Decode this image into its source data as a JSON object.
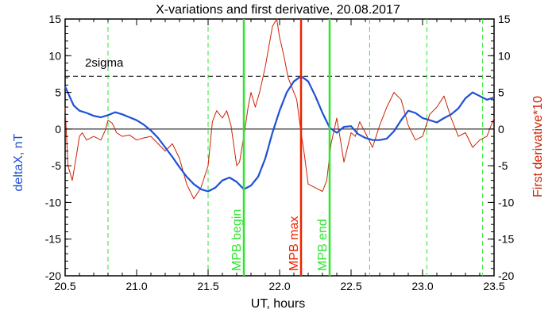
{
  "chart_data": {
    "type": "line",
    "title": "X-variations and first derivative, 20.08.2017",
    "xlabel": "UT, hours",
    "ylabel_left": "deltaX, nT",
    "ylabel_right": "First derivative*10",
    "xlim": [
      20.5,
      23.5
    ],
    "ylim": [
      -20,
      15
    ],
    "x_ticks": [
      20.5,
      21.0,
      21.5,
      22.0,
      22.5,
      23.0,
      23.5
    ],
    "x_tick_labels": [
      "20.5",
      "21.0",
      "21.5",
      "22.0",
      "22.5",
      "23.0",
      "23.5"
    ],
    "y_ticks": [
      -20,
      -15,
      -10,
      -5,
      0,
      5,
      10,
      15
    ],
    "y_tick_labels_left": [
      "-20",
      "-15",
      "-10",
      "-5",
      "0",
      "5",
      "10",
      "15"
    ],
    "y_tick_labels_right": [
      "-20",
      "-15",
      "-10",
      "-5",
      "0",
      "5",
      "10",
      "15"
    ],
    "series": [
      {
        "label": "deltaX, nT",
        "color": "#1f4fd6",
        "x": [
          20.5,
          20.53,
          20.56,
          20.6,
          20.65,
          20.7,
          20.75,
          20.8,
          20.85,
          20.9,
          20.95,
          21.0,
          21.05,
          21.1,
          21.15,
          21.2,
          21.25,
          21.3,
          21.35,
          21.4,
          21.45,
          21.5,
          21.55,
          21.6,
          21.65,
          21.7,
          21.75,
          21.8,
          21.85,
          21.9,
          21.95,
          22.0,
          22.05,
          22.1,
          22.15,
          22.2,
          22.25,
          22.3,
          22.35,
          22.4,
          22.45,
          22.5,
          22.55,
          22.6,
          22.65,
          22.7,
          22.75,
          22.8,
          22.85,
          22.9,
          22.95,
          23.0,
          23.05,
          23.1,
          23.15,
          23.2,
          23.25,
          23.3,
          23.35,
          23.4,
          23.45,
          23.5
        ],
        "y": [
          5.8,
          4.5,
          3.2,
          2.5,
          2.2,
          1.8,
          1.6,
          1.9,
          2.3,
          2.0,
          1.6,
          1.2,
          0.6,
          -0.2,
          -1.2,
          -2.5,
          -3.8,
          -5.2,
          -6.5,
          -7.5,
          -8.2,
          -8.5,
          -8.0,
          -7.0,
          -6.6,
          -7.2,
          -8.2,
          -7.7,
          -6.5,
          -4.0,
          -0.5,
          2.5,
          5.0,
          6.5,
          7.2,
          6.5,
          4.5,
          2.2,
          0.2,
          -0.5,
          0.3,
          0.4,
          -0.7,
          -1.2,
          -1.5,
          -1.5,
          -1.3,
          -0.3,
          1.2,
          2.5,
          2.2,
          1.5,
          1.2,
          0.9,
          1.5,
          2.0,
          2.8,
          4.2,
          5.0,
          4.5,
          4.0,
          4.3
        ]
      },
      {
        "label": "First derivative*10",
        "color": "#cc2200",
        "x": [
          20.5,
          20.52,
          20.55,
          20.58,
          20.6,
          20.62,
          20.65,
          20.7,
          20.75,
          20.78,
          20.8,
          20.83,
          20.86,
          20.9,
          20.95,
          21.0,
          21.05,
          21.1,
          21.15,
          21.2,
          21.25,
          21.3,
          21.35,
          21.4,
          21.45,
          21.5,
          21.53,
          21.56,
          21.6,
          21.63,
          21.66,
          21.7,
          21.72,
          21.75,
          21.78,
          21.8,
          21.83,
          21.86,
          21.9,
          21.95,
          21.98,
          22.0,
          22.03,
          22.06,
          22.1,
          22.12,
          22.15,
          22.17,
          22.2,
          22.25,
          22.3,
          22.33,
          22.36,
          22.4,
          22.43,
          22.45,
          22.5,
          22.53,
          22.56,
          22.6,
          22.65,
          22.7,
          22.75,
          22.8,
          22.85,
          22.9,
          22.95,
          23.0,
          23.05,
          23.1,
          23.15,
          23.2,
          23.25,
          23.3,
          23.35,
          23.4,
          23.45,
          23.5
        ],
        "y": [
          3.0,
          -5.0,
          -7.0,
          -3.5,
          -1.0,
          -0.5,
          -1.5,
          -1.0,
          -1.5,
          -0.2,
          1.2,
          0.8,
          -0.5,
          -1.0,
          -0.8,
          -1.5,
          -1.2,
          -1.0,
          -2.0,
          -3.0,
          -2.0,
          -4.0,
          -7.5,
          -9.5,
          -8.0,
          -5.0,
          1.0,
          2.5,
          1.5,
          2.5,
          0.5,
          -5.0,
          -4.5,
          -1.0,
          3.0,
          5.0,
          3.0,
          5.0,
          8.5,
          14.0,
          15.0,
          12.5,
          10.0,
          7.0,
          5.0,
          4.0,
          -0.5,
          -3.0,
          -7.5,
          -8.0,
          -8.5,
          -7.0,
          -2.0,
          1.5,
          -2.0,
          -4.5,
          -0.5,
          -1.0,
          1.0,
          -0.5,
          -2.5,
          0.5,
          3.0,
          5.0,
          4.0,
          0.5,
          -1.5,
          -1.0,
          2.0,
          3.0,
          4.5,
          1.5,
          -1.0,
          -0.5,
          -2.5,
          -1.5,
          -1.0,
          1.5
        ]
      }
    ],
    "reference_lines": {
      "zero": {
        "y": 0,
        "color": "#000000"
      },
      "two_sigma": {
        "label": "2sigma",
        "y": 7.2,
        "color": "#000000"
      },
      "dashed_green_x": [
        20.8,
        21.5,
        22.63,
        23.03,
        23.42
      ]
    },
    "markers": [
      {
        "label": "MPB begin",
        "x": 21.75,
        "color": "#2ee62e"
      },
      {
        "label": "MPB max",
        "x": 22.15,
        "color": "#ee2200"
      },
      {
        "label": "MPB end",
        "x": 22.35,
        "color": "#2ee62e"
      }
    ]
  }
}
